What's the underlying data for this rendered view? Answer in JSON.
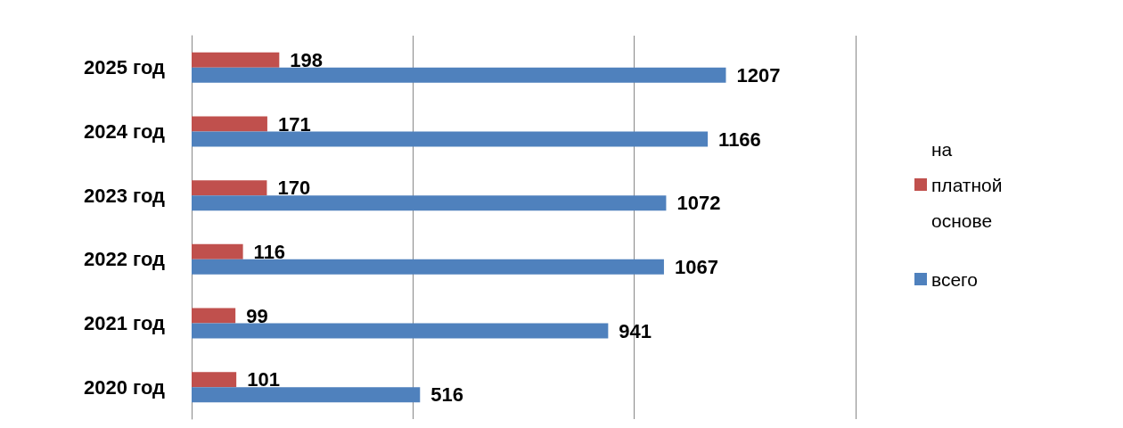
{
  "chart_data": {
    "type": "bar",
    "orientation": "horizontal",
    "categories": [
      "2025 год",
      "2024 год",
      "2023 год",
      "2022 год",
      "2021 год",
      "2020 год"
    ],
    "series": [
      {
        "name": "на платной основе",
        "color": "#c0504d",
        "values": [
          198,
          171,
          170,
          116,
          99,
          101
        ]
      },
      {
        "name": "всего",
        "color": "#4f81bd",
        "values": [
          1207,
          1166,
          1072,
          1067,
          941,
          516
        ]
      }
    ],
    "xlim": [
      0,
      1500
    ],
    "xticks": [
      {
        "value": 0,
        "label": null
      },
      {
        "value": 500,
        "label": null
      },
      {
        "value": 1000,
        "label": null
      },
      {
        "value": 1500,
        "label": null
      }
    ],
    "grid": "x",
    "legend": "right",
    "data_labels": true
  }
}
